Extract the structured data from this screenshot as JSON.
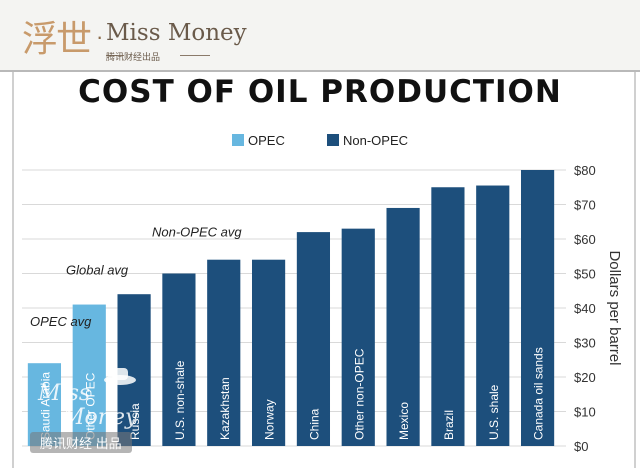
{
  "header": {
    "logo_cn": "浮世",
    "logo_dot": "·",
    "logo_en": "Miss Money",
    "logo_sub": "腾讯财经出品"
  },
  "watermark": {
    "text": "腾讯财经 出品",
    "script": "Miss Money"
  },
  "colors": {
    "opec": "#67b7e0",
    "non_opec": "#1d4f7c"
  },
  "chart_data": {
    "type": "bar",
    "title": "COST OF OIL PRODUCTION",
    "ylabel": "Dollars per barrel",
    "ylim": [
      0,
      80
    ],
    "yticks": [
      "$0",
      "$10",
      "$20",
      "$30",
      "$40",
      "$50",
      "$60",
      "$70",
      "$80"
    ],
    "legend": {
      "placement": "top",
      "items": [
        {
          "name": "OPEC",
          "color": "#67b7e0"
        },
        {
          "name": "Non-OPEC",
          "color": "#1d4f7c"
        }
      ]
    },
    "categories": [
      "Saudi Arabia",
      "Other OPEC",
      "Russia",
      "U.S. non-shale",
      "Kazakhstan",
      "Norway",
      "China",
      "Other non-OPEC",
      "Mexico",
      "Brazil",
      "U.S. shale",
      "Canada oil sands"
    ],
    "values": [
      24,
      41,
      44,
      50,
      54,
      54,
      62,
      63,
      69,
      75,
      75.5,
      80
    ],
    "groups": [
      "OPEC",
      "OPEC",
      "Non-OPEC",
      "Non-OPEC",
      "Non-OPEC",
      "Non-OPEC",
      "Non-OPEC",
      "Non-OPEC",
      "Non-OPEC",
      "Non-OPEC",
      "Non-OPEC",
      "Non-OPEC"
    ],
    "annotations": [
      {
        "text": "OPEC avg",
        "value": 33
      },
      {
        "text": "Global avg",
        "value": 48
      },
      {
        "text": "Non-OPEC avg",
        "value": 59
      }
    ]
  }
}
